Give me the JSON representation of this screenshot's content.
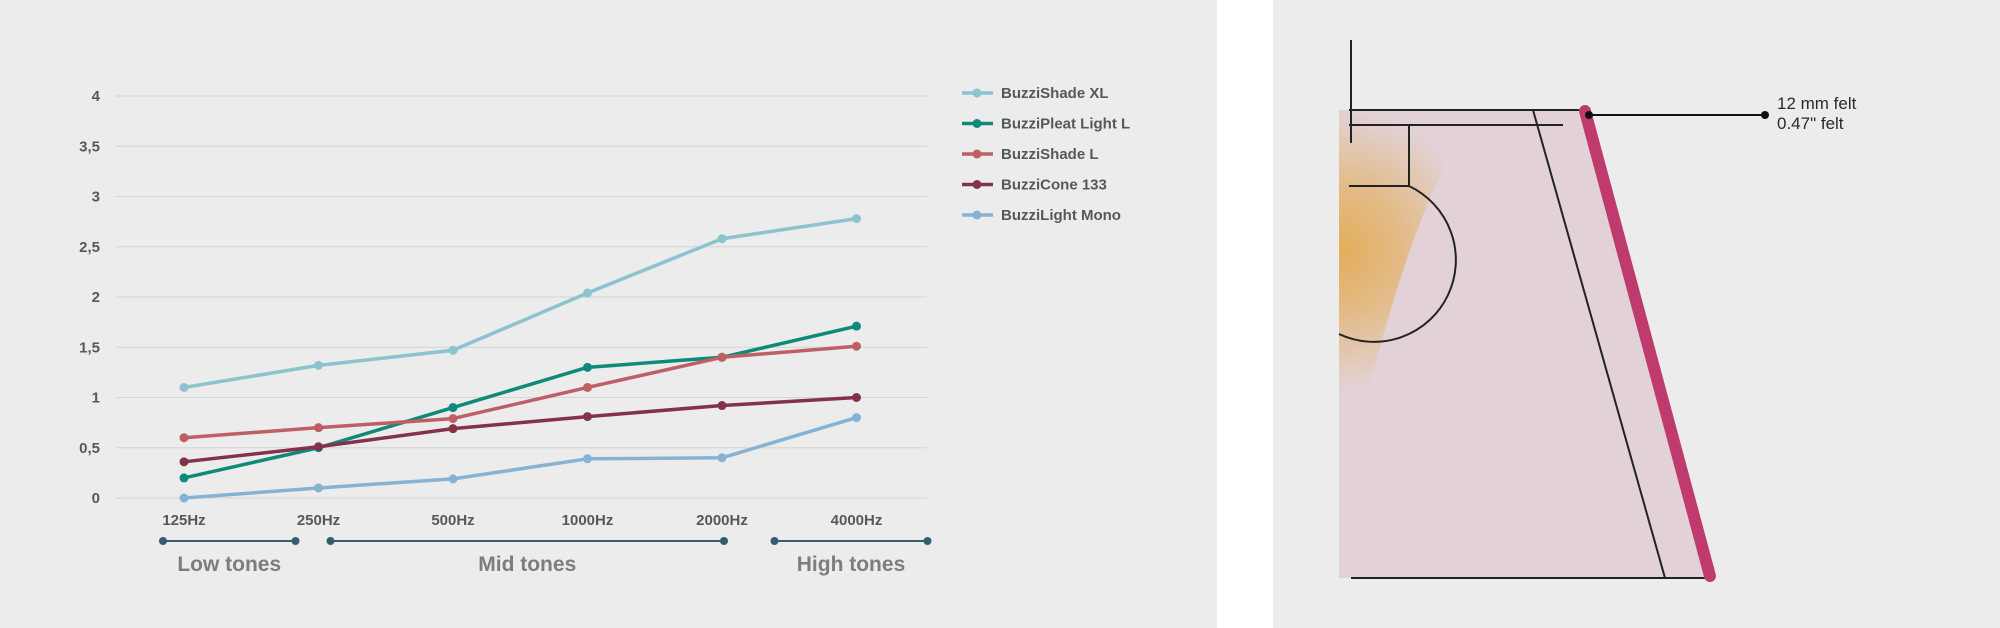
{
  "chart_data": {
    "type": "line",
    "categories": [
      "125Hz",
      "250Hz",
      "500Hz",
      "1000Hz",
      "2000Hz",
      "4000Hz"
    ],
    "ylim": [
      0,
      4
    ],
    "yticks": [
      "0",
      "0,5",
      "1",
      "1,5",
      "2",
      "2,5",
      "3",
      "3,5",
      "4"
    ],
    "grid": true,
    "legend_position": "right",
    "series": [
      {
        "name": "BuzziShade XL",
        "color": "#8dc3cf",
        "values": [
          1.1,
          1.32,
          1.47,
          2.04,
          2.58,
          2.78
        ]
      },
      {
        "name": "BuzziPleat Light L",
        "color": "#0f8a7a",
        "values": [
          0.2,
          0.5,
          0.9,
          1.3,
          1.4,
          1.71
        ]
      },
      {
        "name": "BuzziShade L",
        "color": "#bd5f65",
        "values": [
          0.6,
          0.7,
          0.79,
          1.1,
          1.4,
          1.51
        ]
      },
      {
        "name": "BuzziCone 133",
        "color": "#84324a",
        "values": [
          0.36,
          0.51,
          0.69,
          0.81,
          0.92,
          1.0
        ]
      },
      {
        "name": "BuzziLight Mono",
        "color": "#86b2d3",
        "values": [
          0.0,
          0.1,
          0.19,
          0.39,
          0.4,
          0.8
        ]
      }
    ],
    "bands": [
      {
        "label": "Low tones",
        "from": "125Hz",
        "to": "250Hz"
      },
      {
        "label": "Mid tones",
        "from": "250Hz",
        "to": "2000Hz"
      },
      {
        "label": "High tones",
        "from": "4000Hz",
        "to": "4000Hz"
      }
    ],
    "band_color": "#345e70"
  },
  "diagram": {
    "felt_label_line1": "12 mm felt",
    "felt_label_line2": "0.47\" felt",
    "felt_color": "#bf3a6d",
    "body_color": "#e2d2d7",
    "glow_color": "#e3ae5b"
  }
}
